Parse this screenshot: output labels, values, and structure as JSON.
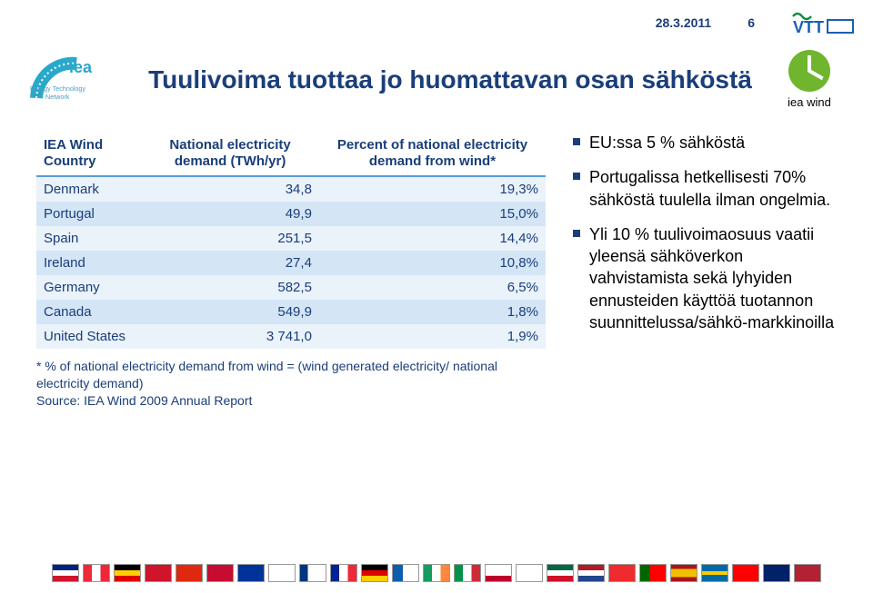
{
  "header": {
    "date": "28.3.2011",
    "page": "6"
  },
  "title": "Tuulivoima tuottaa jo huomattavan osan sähköstä",
  "iea_wind_label": "iea wind",
  "table": {
    "columns": [
      "IEA Wind Country",
      "National electricity demand (TWh/yr)",
      "Percent of national electricity demand from wind*"
    ],
    "rows": [
      [
        "Denmark",
        "34,8",
        "19,3%"
      ],
      [
        "Portugal",
        "49,9",
        "15,0%"
      ],
      [
        "Spain",
        "251,5",
        "14,4%"
      ],
      [
        "Ireland",
        "27,4",
        "10,8%"
      ],
      [
        "Germany",
        "582,5",
        "6,5%"
      ],
      [
        "Canada",
        "549,9",
        "1,8%"
      ],
      [
        "United States",
        "3 741,0",
        "1,9%"
      ]
    ],
    "note1": "* % of national electricity demand from wind = (wind generated electricity/ national electricity demand)",
    "note2": "Source: IEA Wind 2009 Annual Report"
  },
  "bullets": [
    "EU:ssa 5 % sähköstä",
    "Portugalissa hetkellisesti 70% sähköstä tuulella ilman ongelmia.",
    "Yli 10 % tuulivoimaosuus vaatii yleensä sähköverkon vahvistamista sekä lyhyiden ennusteiden käyttöä tuotannon suunnittelussa/sähkö-markkinoilla"
  ],
  "flag_colors": [
    "linear-gradient(#00247d 33%,#fff 33% 66%,#cf142b 66%)",
    "linear-gradient(to right,#ed2939 33%,#fff 33% 66%,#ed2939 66%)",
    "linear-gradient(#000 33%,#ffce00 33% 66%,#dd0000 66%)",
    "linear-gradient(#cf142b,#cf142b)",
    "linear-gradient(#de2910,#de2910)",
    "linear-gradient(#c60c30,#c60c30)",
    "linear-gradient(#003399,#003399)",
    "linear-gradient(#fff,#fff)",
    "linear-gradient(to right,#003580 30%,#fff 30%)",
    "linear-gradient(to right,#002395 33%,#fff 33% 66%,#ed2939 66%)",
    "linear-gradient(#000 33%,#dd0000 33% 66%,#ffce00 66%)",
    "linear-gradient(to right,#0d5eaf 40%,#fff 40%)",
    "linear-gradient(to right,#169b62 33%,#fff 33% 66%,#ff883e 66%)",
    "linear-gradient(to right,#009246 33%,#fff 33% 66%,#ce2b37 66%)",
    "linear-gradient(#fff 66%,#bc002d 66%)",
    "linear-gradient(#fff,#fff)",
    "linear-gradient(#006847 33%,#fff 33% 66%,#ce1126 66%)",
    "linear-gradient(#ae1c28 33%,#fff 33% 66%,#21468b 66%)",
    "linear-gradient(#ef2b2d,#ef2b2d)",
    "linear-gradient(to right,#006600 40%,#ff0000 40%)",
    "linear-gradient(#aa151b 25%,#f1bf00 25% 75%,#aa151b 75%)",
    "linear-gradient(#006aa7 40%,#fecc00 40% 60%,#006aa7 60%)",
    "linear-gradient(#ff0000,#ff0000)",
    "linear-gradient(#012169,#012169)",
    "linear-gradient(#b22234,#b22234)"
  ]
}
